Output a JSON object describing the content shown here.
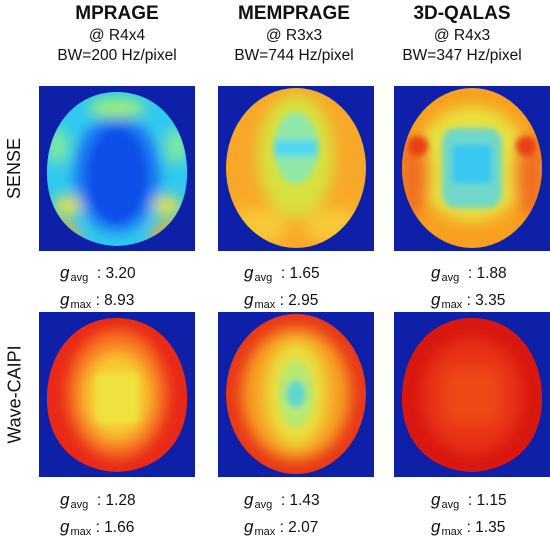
{
  "columns": [
    {
      "title": "MPRAGE",
      "accel": "@ R4x4",
      "bw": "BW=200 Hz/pixel"
    },
    {
      "title": "MEMPRAGE",
      "accel": "@ R3x3",
      "bw": "BW=744 Hz/pixel"
    },
    {
      "title": "3D-QALAS",
      "accel": "@ R4x3",
      "bw": "BW=347 Hz/pixel"
    }
  ],
  "rows": [
    {
      "label": "SENSE"
    },
    {
      "label": "Wave-CAIPI"
    }
  ],
  "metric_labels": {
    "symbol": "g",
    "avg": "avg",
    "max": "max"
  },
  "panels": [
    [
      {
        "image": "SENSE g-factor map, MPRAGE",
        "avg": ": 3.20",
        "max": ": 8.93"
      },
      {
        "image": "SENSE g-factor map, MEMPRAGE",
        "avg": ": 1.65",
        "max": ": 2.95"
      },
      {
        "image": "SENSE g-factor map, 3D-QALAS",
        "avg": ": 1.88",
        "max": ": 3.35"
      }
    ],
    [
      {
        "image": "Wave-CAIPI g-factor map, MPRAGE",
        "avg": ": 1.28",
        "max": ": 1.66"
      },
      {
        "image": "Wave-CAIPI g-factor map, MEMPRAGE",
        "avg": ": 1.43",
        "max": ": 2.07"
      },
      {
        "image": "Wave-CAIPI g-factor map, 3D-QALAS",
        "avg": ": 1.15",
        "max": ": 1.35"
      }
    ]
  ],
  "colors": {
    "background_blue": "#0f20a8",
    "low": "#1060f0",
    "mid_low": "#30d8f0",
    "mid": "#e8e030",
    "mid_high": "#f8a020",
    "high": "#e82018"
  }
}
